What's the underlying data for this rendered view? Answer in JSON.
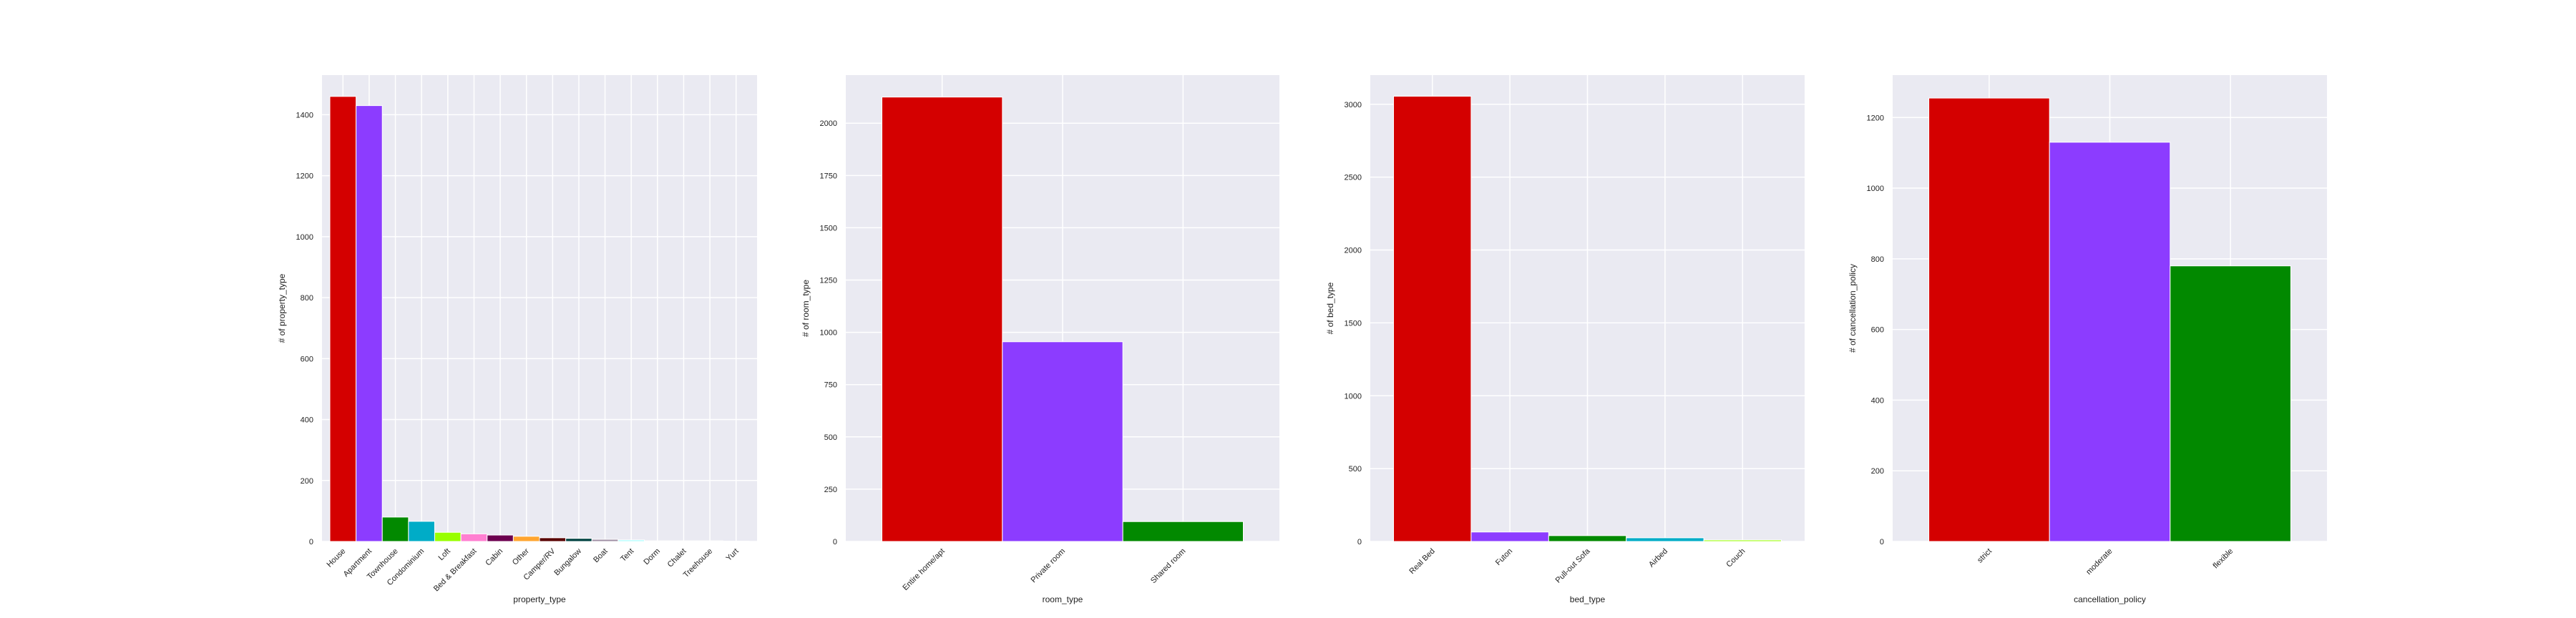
{
  "colors": {
    "plot_background": "#eaeaf2",
    "grid": "#ffffff",
    "palette": [
      "#d40000",
      "#8c3cff",
      "#028900",
      "#00acc7",
      "#98ff00",
      "#ff7fd1",
      "#6c004f",
      "#ffa530",
      "#580000",
      "#004241",
      "#9f8fa4",
      "#a4ffff",
      "#aafac5",
      "#d3d3d3",
      "#ffe5e5"
    ]
  },
  "chart_data": [
    {
      "type": "bar",
      "xlabel": "property_type",
      "ylabel": "# of property_type",
      "categories": [
        "House",
        "Apartment",
        "Townhouse",
        "Condominium",
        "Loft",
        "Bed & Breakfast",
        "Cabin",
        "Other",
        "Camper/RV",
        "Bungalow",
        "Boat",
        "Tent",
        "Dorm",
        "Chalet",
        "Treehouse",
        "Yurt"
      ],
      "values": [
        1460,
        1430,
        80,
        66,
        30,
        25,
        21,
        17,
        12,
        10,
        7,
        5,
        2,
        2,
        2,
        1
      ],
      "ylim": [
        0,
        1530
      ],
      "yticks": [
        0,
        200,
        400,
        600,
        800,
        1000,
        1200,
        1400
      ],
      "grid": true
    },
    {
      "type": "bar",
      "xlabel": "room_type",
      "ylabel": "# of room_type",
      "categories": [
        "Entire home/apt",
        "Private room",
        "Shared room"
      ],
      "values": [
        2125,
        955,
        95
      ],
      "ylim": [
        0,
        2230
      ],
      "yticks": [
        0,
        250,
        500,
        750,
        1000,
        1250,
        1500,
        1750,
        2000
      ],
      "grid": true
    },
    {
      "type": "bar",
      "xlabel": "bed_type",
      "ylabel": "# of bed_type",
      "categories": [
        "Real Bed",
        "Futon",
        "Pull-out Sofa",
        "Airbed",
        "Couch"
      ],
      "values": [
        3055,
        65,
        40,
        25,
        10
      ],
      "ylim": [
        0,
        3200
      ],
      "yticks": [
        0,
        500,
        1000,
        1500,
        2000,
        2500,
        3000
      ],
      "grid": true
    },
    {
      "type": "bar",
      "xlabel": "cancellation_policy",
      "ylabel": "# of cancellation_policy",
      "categories": [
        "strict",
        "moderate",
        "flexible"
      ],
      "values": [
        1255,
        1130,
        780
      ],
      "ylim": [
        0,
        1320
      ],
      "yticks": [
        0,
        200,
        400,
        600,
        800,
        1000,
        1200
      ],
      "grid": true
    }
  ]
}
